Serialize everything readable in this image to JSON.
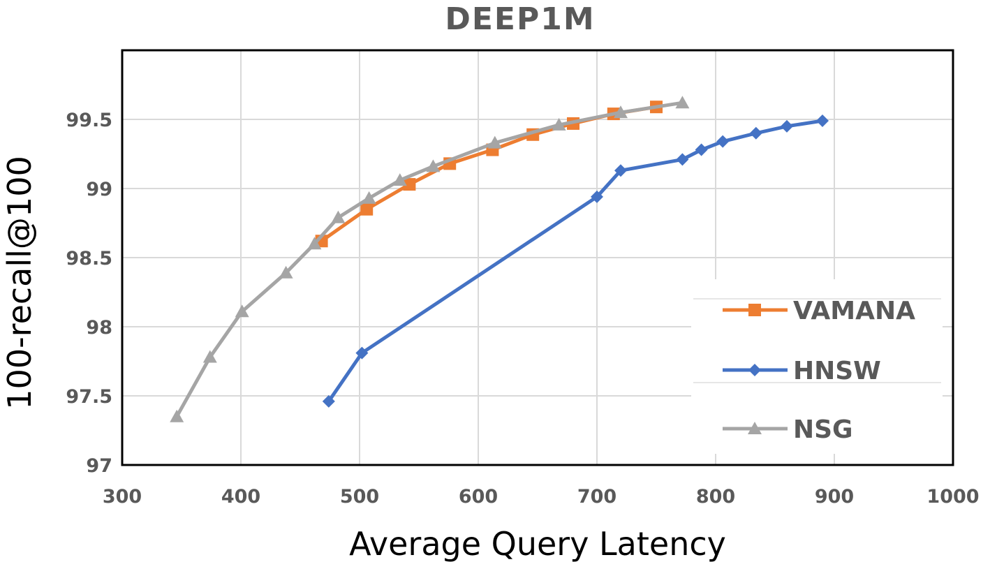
{
  "chart_data": {
    "type": "line",
    "title": "DEEP1M",
    "xlabel": "Average Query Latency",
    "ylabel": "100-recall@100",
    "xlim": [
      300,
      1000
    ],
    "ylim": [
      97,
      100
    ],
    "xticks": [
      "300",
      "400",
      "500",
      "600",
      "700",
      "800",
      "900",
      "1000"
    ],
    "yticks": [
      "97",
      "97.5",
      "98",
      "98.5",
      "99",
      "99.5"
    ],
    "grid": true,
    "legend_position": "bottom-right",
    "series": [
      {
        "name": "VAMANA",
        "color": "#ed7d31",
        "marker": "square",
        "points": [
          [
            468,
            98.62
          ],
          [
            506,
            98.85
          ],
          [
            542,
            99.03
          ],
          [
            576,
            99.18
          ],
          [
            612,
            99.28
          ],
          [
            646,
            99.39
          ],
          [
            680,
            99.47
          ],
          [
            714,
            99.54
          ],
          [
            750,
            99.59
          ]
        ]
      },
      {
        "name": "HNSW",
        "color": "#4472c4",
        "marker": "diamond",
        "points": [
          [
            474,
            97.46
          ],
          [
            502,
            97.81
          ],
          [
            700,
            98.94
          ],
          [
            720,
            99.13
          ],
          [
            772,
            99.21
          ],
          [
            788,
            99.28
          ],
          [
            806,
            99.34
          ],
          [
            834,
            99.4
          ],
          [
            860,
            99.45
          ],
          [
            890,
            99.49
          ]
        ]
      },
      {
        "name": "NSG",
        "color": "#a5a5a5",
        "marker": "triangle",
        "points": [
          [
            346,
            97.35
          ],
          [
            374,
            97.78
          ],
          [
            401,
            98.11
          ],
          [
            438,
            98.39
          ],
          [
            462,
            98.6
          ],
          [
            482,
            98.79
          ],
          [
            508,
            98.93
          ],
          [
            534,
            99.06
          ],
          [
            562,
            99.16
          ],
          [
            614,
            99.33
          ],
          [
            668,
            99.46
          ],
          [
            720,
            99.55
          ],
          [
            772,
            99.62
          ]
        ]
      }
    ]
  }
}
